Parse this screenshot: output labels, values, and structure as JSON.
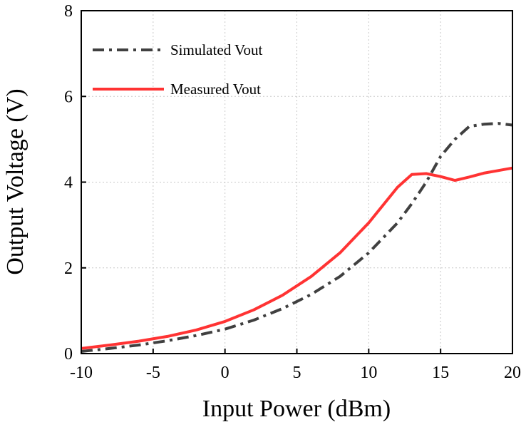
{
  "chart_data": {
    "type": "line",
    "title": "",
    "xlabel": "Input Power (dBm)",
    "ylabel": "Output Voltage (V)",
    "xlim": [
      -10,
      20
    ],
    "ylim": [
      0,
      8
    ],
    "xticks": [
      -10,
      -5,
      0,
      5,
      10,
      15,
      20
    ],
    "yticks": [
      0,
      2,
      4,
      6,
      8
    ],
    "xtick_labels": [
      "-10",
      "-5",
      "0",
      "5",
      "10",
      "15",
      "20"
    ],
    "ytick_labels": [
      "0",
      "2",
      "4",
      "6",
      "8"
    ],
    "grid": true,
    "legend_position": "top-left",
    "series": [
      {
        "name": "Simulated Vout",
        "color": "#404040",
        "style": "dash-dot",
        "x": [
          -10,
          -8,
          -6,
          -4,
          -2,
          0,
          2,
          4,
          6,
          8,
          10,
          12,
          13,
          14,
          15,
          16,
          17,
          18,
          19,
          20
        ],
        "y": [
          0.05,
          0.12,
          0.2,
          0.3,
          0.42,
          0.57,
          0.78,
          1.05,
          1.38,
          1.8,
          2.35,
          3.05,
          3.5,
          4.0,
          4.6,
          5.0,
          5.3,
          5.35,
          5.37,
          5.33
        ]
      },
      {
        "name": "Measured Vout",
        "color": "#ff3333",
        "style": "solid",
        "x": [
          -10,
          -8,
          -6,
          -4,
          -2,
          0,
          2,
          4,
          6,
          8,
          10,
          12,
          13,
          14,
          15,
          16,
          17,
          18,
          19,
          20
        ],
        "y": [
          0.12,
          0.2,
          0.29,
          0.4,
          0.55,
          0.75,
          1.02,
          1.36,
          1.8,
          2.35,
          3.05,
          3.88,
          4.18,
          4.2,
          4.13,
          4.04,
          4.12,
          4.21,
          4.27,
          4.33
        ]
      }
    ]
  }
}
